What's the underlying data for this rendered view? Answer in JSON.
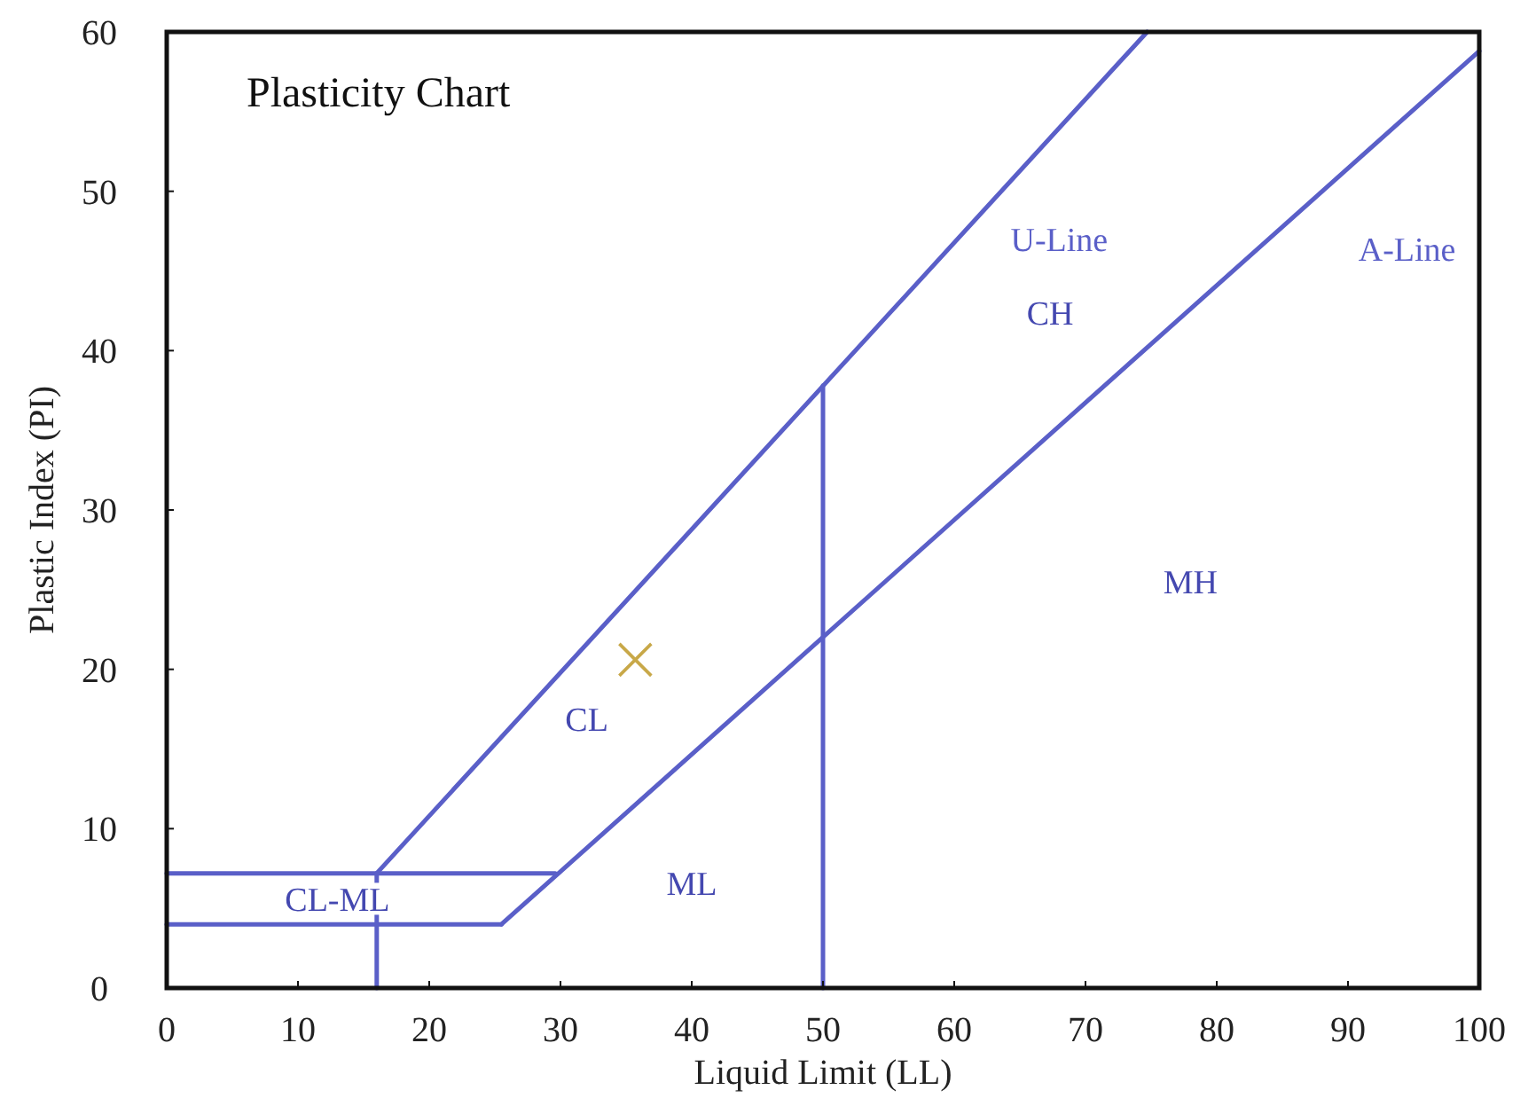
{
  "chart_data": {
    "type": "line",
    "title": "Plasticity Chart",
    "xlabel": "Liquid Limit (LL)",
    "ylabel": "Plastic Index (PI)",
    "xlim": [
      0,
      100
    ],
    "ylim": [
      0,
      60
    ],
    "xticks": [
      0,
      10,
      20,
      30,
      40,
      50,
      60,
      70,
      80,
      90,
      100
    ],
    "yticks": [
      0,
      10,
      20,
      30,
      40,
      50,
      60
    ],
    "grid": false,
    "line_style": "solid",
    "series": [
      {
        "name": "U-Line",
        "color": "#5a5fc8",
        "x": [
          16,
          74.7
        ],
        "values": [
          7.2,
          60
        ]
      },
      {
        "name": "A-Line",
        "color": "#5a5fc8",
        "x": [
          25.5,
          100
        ],
        "values": [
          4,
          58.8
        ]
      },
      {
        "color": "#5a5fc8",
        "x": [
          0,
          25.5
        ],
        "values": [
          4,
          4
        ]
      },
      {
        "color": "#5a5fc8",
        "x": [
          0,
          29.6
        ],
        "values": [
          7.2,
          7.2
        ]
      },
      {
        "color": "#5a5fc8",
        "x": [
          16,
          16
        ],
        "values": [
          0,
          7.2
        ]
      },
      {
        "color": "#5a5fc8",
        "x": [
          50,
          50
        ],
        "values": [
          0,
          37.8
        ]
      },
      {
        "type": "scatter",
        "color": "#c8a848",
        "marker": "cross",
        "x": [
          35.7
        ],
        "values": [
          20.6
        ]
      }
    ],
    "annotations": [
      "CH",
      "MH",
      "CL",
      "ML",
      "CL-ML"
    ]
  }
}
